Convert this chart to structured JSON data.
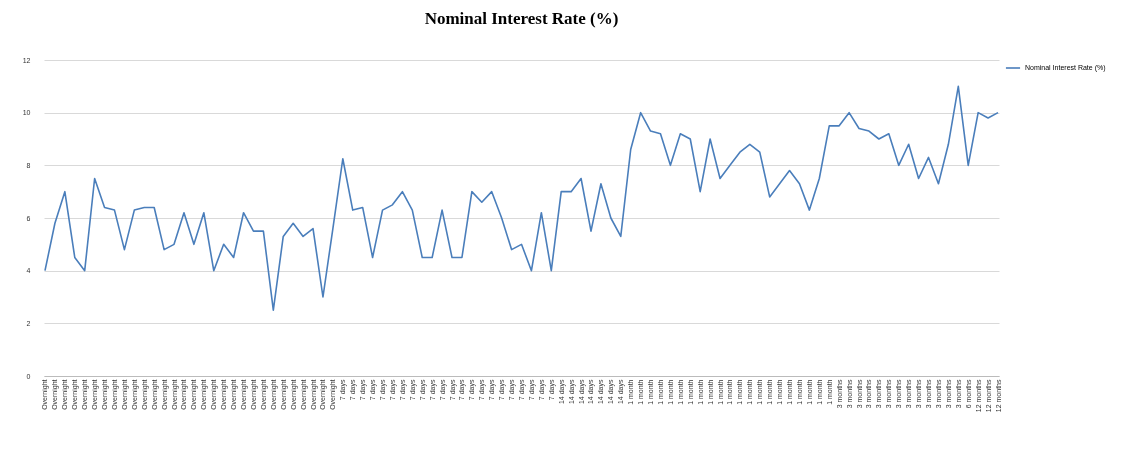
{
  "chart_data": {
    "type": "line",
    "title": "Nominal Interest Rate (%)",
    "categories": [
      "Overnight",
      "Overnight",
      "Overnight",
      "Overnight",
      "Overnight",
      "Overnight",
      "Overnight",
      "Overnight",
      "Overnight",
      "Overnight",
      "Overnight",
      "Overnight",
      "Overnight",
      "Overnight",
      "Overnight",
      "Overnight",
      "Overnight",
      "Overnight",
      "Overnight",
      "Overnight",
      "Overnight",
      "Overnight",
      "Overnight",
      "Overnight",
      "Overnight",
      "Overnight",
      "Overnight",
      "Overnight",
      "Overnight",
      "Overnight",
      "7 days",
      "7 days",
      "7 days",
      "7 days",
      "7 days",
      "7 days",
      "7 days",
      "7 days",
      "7 days",
      "7 days",
      "7 days",
      "7 days",
      "7 days",
      "7 days",
      "7 days",
      "7 days",
      "7 days",
      "7 days",
      "7 days",
      "7 days",
      "7 days",
      "7 days",
      "14 days",
      "14 days",
      "14 days",
      "14 days",
      "14 days",
      "14 days",
      "14 days",
      "1 month",
      "1 month",
      "1 month",
      "1 month",
      "1 month",
      "1 month",
      "1 month",
      "1 month",
      "1 month",
      "1 month",
      "1 month",
      "1 month",
      "1 month",
      "1 month",
      "1 month",
      "1 month",
      "1 month",
      "1 month",
      "1 month",
      "1 month",
      "1 month",
      "3 months",
      "3 months",
      "3 months",
      "3 months",
      "3 months",
      "3 months",
      "3 months",
      "3 months",
      "3 months",
      "3 months",
      "3 months",
      "3 months",
      "3 months",
      "6 months",
      "12 months",
      "12 months",
      "12 months"
    ],
    "series": [
      {
        "name": "Nominal Interest Rate (%)",
        "color": "#4a7ebb",
        "values": [
          4.0,
          5.8,
          7.0,
          4.5,
          4.0,
          7.5,
          6.4,
          6.3,
          4.8,
          6.3,
          6.4,
          6.4,
          4.8,
          5.0,
          6.2,
          5.0,
          6.2,
          4.0,
          5.0,
          4.5,
          6.2,
          5.5,
          5.5,
          2.5,
          5.3,
          5.8,
          5.3,
          5.6,
          3.0,
          5.6,
          8.25,
          6.3,
          6.4,
          4.5,
          6.3,
          6.5,
          7.0,
          6.3,
          4.5,
          4.5,
          6.3,
          4.5,
          4.5,
          7.0,
          6.6,
          7.0,
          6.0,
          4.8,
          5.0,
          4.0,
          6.2,
          4.0,
          7.0,
          7.0,
          7.5,
          5.5,
          7.3,
          6.0,
          5.3,
          8.6,
          10.0,
          9.3,
          9.2,
          8.0,
          9.2,
          9.0,
          7.0,
          9.0,
          7.5,
          8.0,
          8.5,
          8.8,
          8.5,
          6.8,
          7.3,
          7.8,
          7.3,
          6.3,
          7.5,
          9.5,
          9.5,
          10.0,
          9.4,
          9.3,
          9.0,
          9.2,
          8.0,
          8.8,
          7.5,
          8.3,
          7.3,
          8.8,
          11.0,
          8.0,
          10.0,
          9.8,
          10.0
        ]
      }
    ],
    "ylim": [
      0,
      12
    ],
    "yticks": [
      0,
      2,
      4,
      6,
      8,
      10,
      12
    ],
    "grid": "y",
    "legend": "right"
  }
}
